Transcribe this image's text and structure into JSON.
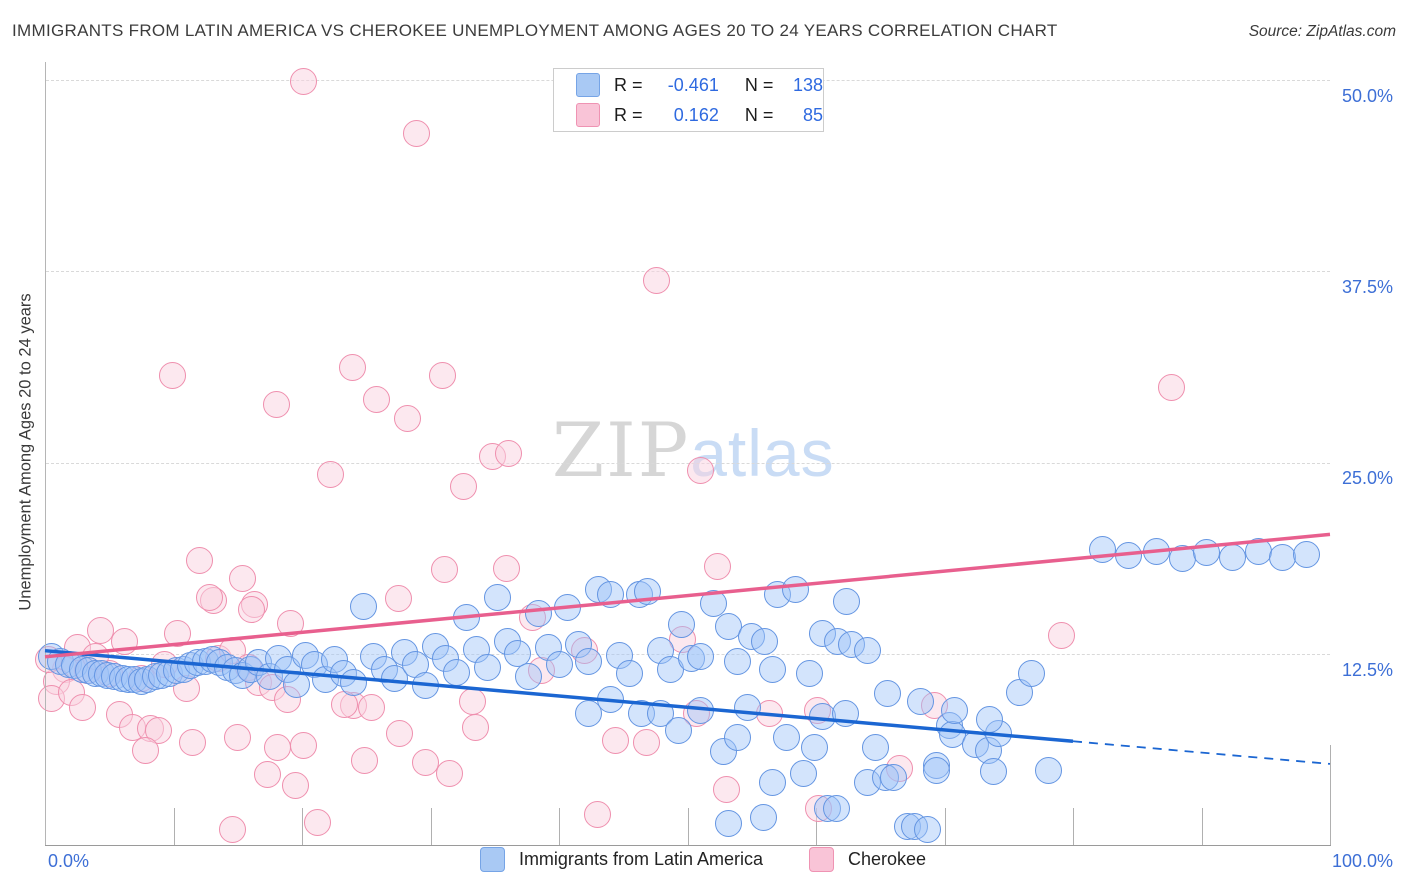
{
  "title": "IMMIGRANTS FROM LATIN AMERICA VS CHEROKEE UNEMPLOYMENT AMONG AGES 20 TO 24 YEARS CORRELATION CHART",
  "source": "Source: ZipAtlas.com",
  "watermark": {
    "zip": "ZIP",
    "atlas": "atlas"
  },
  "y_axis": {
    "label": "Unemployment Among Ages 20 to 24 years",
    "ticks": [
      {
        "value": 50,
        "label": "50.0%"
      },
      {
        "value": 37.5,
        "label": "37.5%"
      },
      {
        "value": 25,
        "label": "25.0%"
      },
      {
        "value": 12.5,
        "label": "12.5%"
      }
    ]
  },
  "x_axis": {
    "min_label": "0.0%",
    "max_label": "100.0%"
  },
  "legend_box": {
    "rows": [
      {
        "color": "blue",
        "r_label": "R =",
        "r_value": "-0.461",
        "n_label": "N =",
        "n_value": "138"
      },
      {
        "color": "pink",
        "r_label": "R =",
        "r_value": "0.162",
        "n_label": "N =",
        "n_value": "85"
      }
    ]
  },
  "bottom_legend": [
    {
      "color": "blue",
      "label": "Immigrants from Latin America"
    },
    {
      "color": "pink",
      "label": "Cherokee"
    }
  ],
  "colors": {
    "blue_point_stroke": "#6495e2",
    "blue_point_fill": "rgba(158,196,248,0.45)",
    "pink_point_stroke": "#ef8fae",
    "pink_point_fill": "rgba(250,210,223,0.5)",
    "blue_trend": "#1b66d2",
    "pink_trend": "#e85f8e",
    "axis_label_blue": "#3d6fd6",
    "grid": "#d9d9d9"
  },
  "chart_data": {
    "type": "scatter",
    "title": "Immigrants from Latin America vs Cherokee Unemployment Among Ages 20 to 24 years",
    "xlabel": "Immigrants from Latin America (%)",
    "ylabel": "Unemployment Among Ages 20 to 24 years (%)",
    "x_range": [
      0,
      100
    ],
    "y_range": [
      0,
      51.2
    ],
    "grid_y": [
      12.5,
      25,
      37.5,
      50
    ],
    "x_tick_step": 10,
    "legend_position": "bottom-center",
    "series": [
      {
        "name": "Immigrants from Latin America",
        "R": -0.461,
        "N": 138,
        "points": [
          [
            0.5,
            12.3
          ],
          [
            1.2,
            12.0
          ],
          [
            1.8,
            11.8
          ],
          [
            2.3,
            11.7
          ],
          [
            2.9,
            11.5
          ],
          [
            3.4,
            11.4
          ],
          [
            3.9,
            11.2
          ],
          [
            4.4,
            11.2
          ],
          [
            4.9,
            11.1
          ],
          [
            5.4,
            11.0
          ],
          [
            6.0,
            10.9
          ],
          [
            6.5,
            10.8
          ],
          [
            7.0,
            10.8
          ],
          [
            7.5,
            10.7
          ],
          [
            8.0,
            10.8
          ],
          [
            8.6,
            11.0
          ],
          [
            9.1,
            11.1
          ],
          [
            9.7,
            11.2
          ],
          [
            10.2,
            11.4
          ],
          [
            10.8,
            11.5
          ],
          [
            11.3,
            11.7
          ],
          [
            11.9,
            11.9
          ],
          [
            12.5,
            12.0
          ],
          [
            13.0,
            12.1
          ],
          [
            13.6,
            11.9
          ],
          [
            14.2,
            11.6
          ],
          [
            14.8,
            11.4
          ],
          [
            15.4,
            11.1
          ],
          [
            16.0,
            11.5
          ],
          [
            16.6,
            11.9
          ],
          [
            17.5,
            11.0
          ],
          [
            18.2,
            12.2
          ],
          [
            18.9,
            11.5
          ],
          [
            19.6,
            10.5
          ],
          [
            20.3,
            12.4
          ],
          [
            21.0,
            11.8
          ],
          [
            21.8,
            10.8
          ],
          [
            22.5,
            12.1
          ],
          [
            23.2,
            11.2
          ],
          [
            24.0,
            10.6
          ],
          [
            24.8,
            15.6
          ],
          [
            25.6,
            12.3
          ],
          [
            26.4,
            11.5
          ],
          [
            27.2,
            10.9
          ],
          [
            28.0,
            12.6
          ],
          [
            28.8,
            11.8
          ],
          [
            29.6,
            10.4
          ],
          [
            30.4,
            13.0
          ],
          [
            31.2,
            12.2
          ],
          [
            32.0,
            11.3
          ],
          [
            32.8,
            14.9
          ],
          [
            33.6,
            12.8
          ],
          [
            34.4,
            11.6
          ],
          [
            35.2,
            16.2
          ],
          [
            36.0,
            13.3
          ],
          [
            36.8,
            12.5
          ],
          [
            37.6,
            11.0
          ],
          [
            38.4,
            15.1
          ],
          [
            39.2,
            12.9
          ],
          [
            40.0,
            11.8
          ],
          [
            40.7,
            15.5
          ],
          [
            41.5,
            13.1
          ],
          [
            42.3,
            12.0
          ],
          [
            43.1,
            16.7
          ],
          [
            44.0,
            16.4
          ],
          [
            44.7,
            12.4
          ],
          [
            45.5,
            11.2
          ],
          [
            46.3,
            16.4
          ],
          [
            46.9,
            16.6
          ],
          [
            47.9,
            12.7
          ],
          [
            48.7,
            11.5
          ],
          [
            49.5,
            14.4
          ],
          [
            50.3,
            12.2
          ],
          [
            51.0,
            12.3
          ],
          [
            52.0,
            15.8
          ],
          [
            53.2,
            14.3
          ],
          [
            53.9,
            12.0
          ],
          [
            55.0,
            13.6
          ],
          [
            56.0,
            13.3
          ],
          [
            56.6,
            11.5
          ],
          [
            57.0,
            16.4
          ],
          [
            58.4,
            16.7
          ],
          [
            59.5,
            11.2
          ],
          [
            60.5,
            13.8
          ],
          [
            61.7,
            13.3
          ],
          [
            62.4,
            15.9
          ],
          [
            62.8,
            13.1
          ],
          [
            64.0,
            12.7
          ],
          [
            65.6,
            9.9
          ],
          [
            42.3,
            8.6
          ],
          [
            44.0,
            9.5
          ],
          [
            46.4,
            8.6
          ],
          [
            47.9,
            8.6
          ],
          [
            49.3,
            7.5
          ],
          [
            51.0,
            8.8
          ],
          [
            52.8,
            6.1
          ],
          [
            53.9,
            7.0
          ],
          [
            54.7,
            9.0
          ],
          [
            55.9,
            1.8
          ],
          [
            53.2,
            1.4
          ],
          [
            56.6,
            4.1
          ],
          [
            57.7,
            7.0
          ],
          [
            59.0,
            4.7
          ],
          [
            59.9,
            6.4
          ],
          [
            60.5,
            8.4
          ],
          [
            60.9,
            2.4
          ],
          [
            61.6,
            2.4
          ],
          [
            62.3,
            8.6
          ],
          [
            64.0,
            4.1
          ],
          [
            65.4,
            4.4
          ],
          [
            66.0,
            4.4
          ],
          [
            64.6,
            6.4
          ],
          [
            67.1,
            1.2
          ],
          [
            67.7,
            1.2
          ],
          [
            68.7,
            1.0
          ],
          [
            69.4,
            5.2
          ],
          [
            70.4,
            7.8
          ],
          [
            70.6,
            7.2
          ],
          [
            72.4,
            6.6
          ],
          [
            73.4,
            6.2
          ],
          [
            74.2,
            7.3
          ],
          [
            69.4,
            4.9
          ],
          [
            73.8,
            4.8
          ],
          [
            78.1,
            4.9
          ],
          [
            75.8,
            10.0
          ],
          [
            68.1,
            9.4
          ],
          [
            70.8,
            8.8
          ],
          [
            73.5,
            8.2
          ],
          [
            76.8,
            11.2
          ],
          [
            82.3,
            19.3
          ],
          [
            84.3,
            18.9
          ],
          [
            86.5,
            19.2
          ],
          [
            88.5,
            18.7
          ],
          [
            90.4,
            19.1
          ],
          [
            92.4,
            18.8
          ],
          [
            94.4,
            19.2
          ],
          [
            96.3,
            18.8
          ],
          [
            98.2,
            19.0
          ]
        ]
      },
      {
        "name": "Cherokee",
        "R": 0.162,
        "N": 85,
        "points": [
          [
            20.1,
            49.9
          ],
          [
            28.9,
            46.5
          ],
          [
            47.6,
            36.9
          ],
          [
            87.7,
            29.9
          ],
          [
            9.9,
            30.7
          ],
          [
            23.9,
            31.2
          ],
          [
            30.9,
            30.7
          ],
          [
            18.0,
            28.8
          ],
          [
            25.8,
            29.1
          ],
          [
            28.2,
            27.9
          ],
          [
            34.8,
            25.4
          ],
          [
            36.1,
            25.6
          ],
          [
            32.6,
            23.4
          ],
          [
            22.2,
            24.2
          ],
          [
            51.0,
            24.5
          ],
          [
            12.0,
            18.6
          ],
          [
            15.4,
            17.4
          ],
          [
            13.1,
            16.0
          ],
          [
            16.3,
            15.7
          ],
          [
            27.5,
            16.1
          ],
          [
            31.1,
            18.0
          ],
          [
            52.3,
            18.2
          ],
          [
            4.3,
            14.0
          ],
          [
            6.2,
            13.3
          ],
          [
            2.5,
            12.9
          ],
          [
            10.3,
            13.8
          ],
          [
            12.8,
            16.2
          ],
          [
            16.1,
            15.4
          ],
          [
            19.1,
            14.5
          ],
          [
            1.6,
            11.5
          ],
          [
            3.3,
            11.4
          ],
          [
            0.9,
            10.7
          ],
          [
            0.5,
            9.6
          ],
          [
            13.5,
            12.2
          ],
          [
            14.6,
            12.7
          ],
          [
            15.8,
            11.6
          ],
          [
            16.6,
            10.6
          ],
          [
            17.7,
            10.3
          ],
          [
            18.9,
            9.5
          ],
          [
            5.8,
            8.5
          ],
          [
            6.8,
            7.7
          ],
          [
            8.2,
            7.6
          ],
          [
            8.8,
            7.5
          ],
          [
            7.8,
            6.2
          ],
          [
            11.5,
            6.7
          ],
          [
            15.0,
            7.0
          ],
          [
            18.1,
            6.4
          ],
          [
            20.1,
            6.5
          ],
          [
            14.6,
            1.0
          ],
          [
            21.2,
            1.5
          ],
          [
            24.0,
            9.1
          ],
          [
            25.4,
            9.0
          ],
          [
            27.6,
            7.3
          ],
          [
            29.6,
            5.4
          ],
          [
            33.3,
            9.4
          ],
          [
            37.9,
            14.9
          ],
          [
            38.6,
            11.4
          ],
          [
            42.0,
            12.7
          ],
          [
            49.6,
            13.4
          ],
          [
            50.7,
            8.6
          ],
          [
            46.8,
            6.7
          ],
          [
            44.4,
            6.8
          ],
          [
            24.9,
            5.5
          ],
          [
            23.3,
            9.2
          ],
          [
            33.5,
            7.7
          ],
          [
            53.0,
            3.6
          ],
          [
            56.4,
            8.6
          ],
          [
            60.1,
            8.8
          ],
          [
            69.2,
            9.1
          ],
          [
            79.1,
            13.7
          ],
          [
            60.2,
            2.4
          ],
          [
            0.3,
            12.1
          ],
          [
            2.1,
            10.0
          ],
          [
            5.0,
            11.2
          ],
          [
            7.5,
            10.9
          ],
          [
            9.3,
            11.8
          ],
          [
            11.0,
            10.2
          ],
          [
            2.9,
            9.0
          ],
          [
            19.5,
            3.9
          ],
          [
            17.3,
            4.6
          ],
          [
            31.5,
            4.7
          ],
          [
            3.9,
            12.3
          ],
          [
            43.0,
            2.0
          ],
          [
            66.5,
            5.0
          ],
          [
            35.9,
            18.1
          ]
        ]
      }
    ],
    "trend_lines": [
      {
        "series": "Immigrants from Latin America",
        "start": [
          0,
          12.7
        ],
        "end": [
          100,
          5.3
        ],
        "solid_until_x": 80,
        "color": "#1b66d2"
      },
      {
        "series": "Cherokee",
        "start": [
          0,
          12.3
        ],
        "end": [
          100,
          20.3
        ],
        "color": "#e85f8e"
      }
    ]
  }
}
